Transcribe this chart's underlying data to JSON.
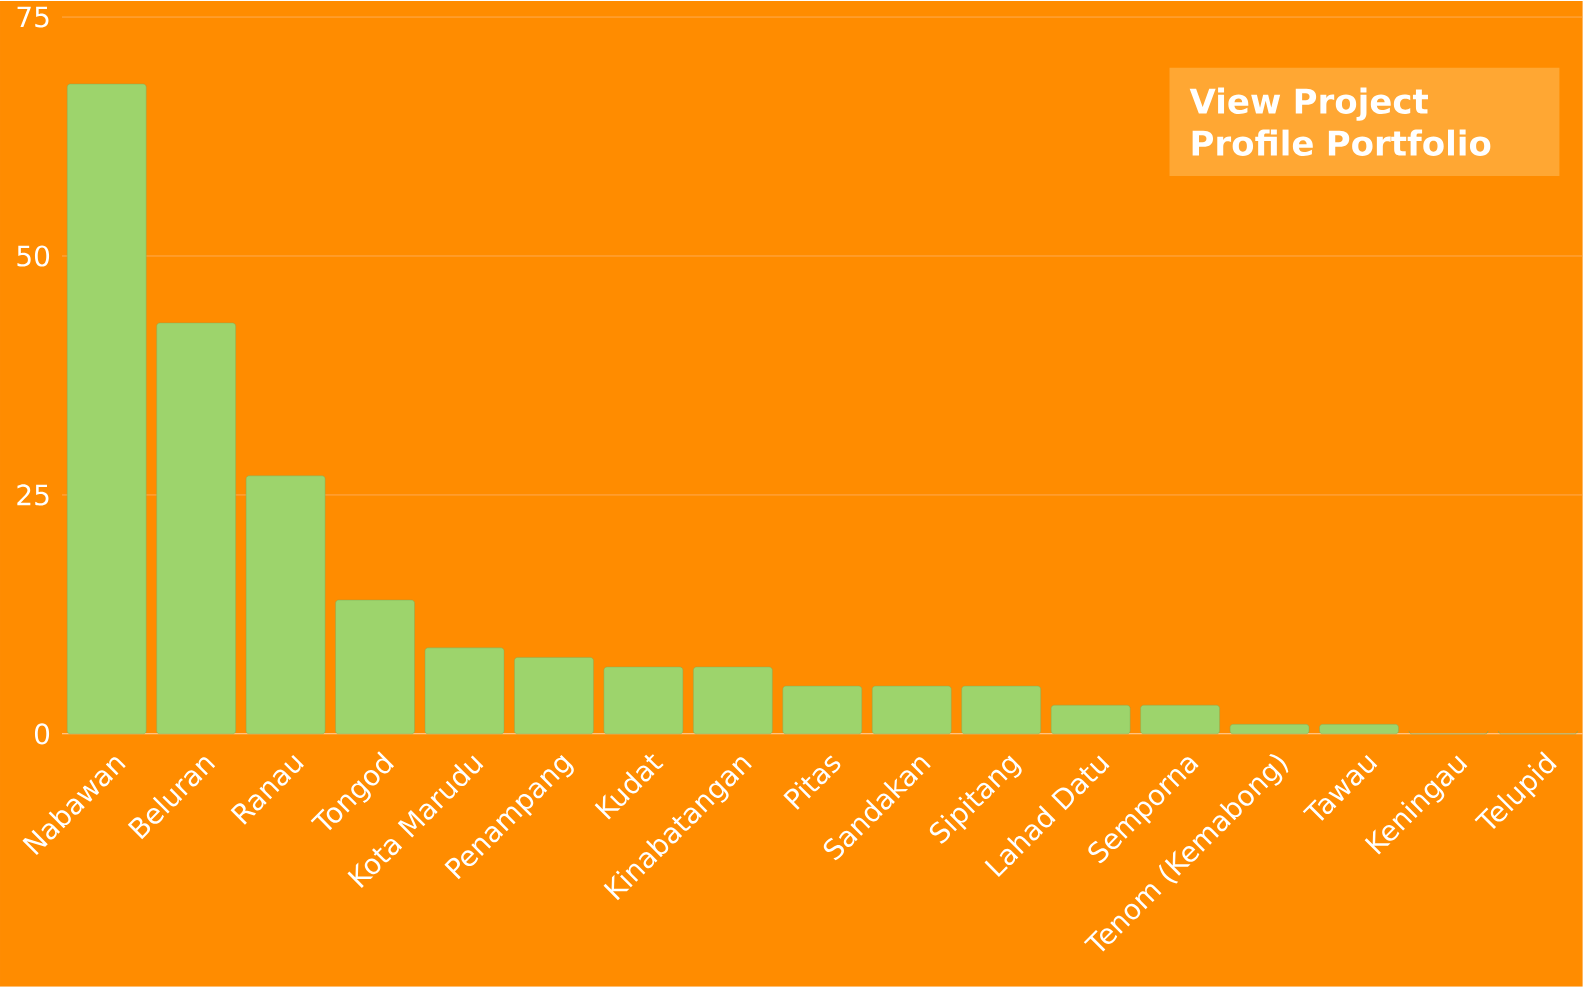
{
  "chart_data": {
    "type": "bar",
    "categories": [
      "Nabawan",
      "Beluran",
      "Ranau",
      "Tongod",
      "Kota Marudu",
      "Penampang",
      "Kudat",
      "Kinabatangan",
      "Pitas",
      "Sandakan",
      "Sipitang",
      "Lahad Datu",
      "Semporna",
      "Tenom (Kemabong)",
      "Tawau",
      "Keningau",
      "Telupid"
    ],
    "values": [
      68,
      43,
      27,
      14,
      9,
      8,
      7,
      7,
      5,
      5,
      5,
      3,
      3,
      1,
      1,
      0,
      0
    ],
    "color": "#9dd46c",
    "ylim": [
      0,
      75
    ],
    "yticks": [
      0,
      25,
      50,
      75
    ],
    "grid": "y",
    "annotations": [
      "View Project Profile Portfolio"
    ]
  }
}
